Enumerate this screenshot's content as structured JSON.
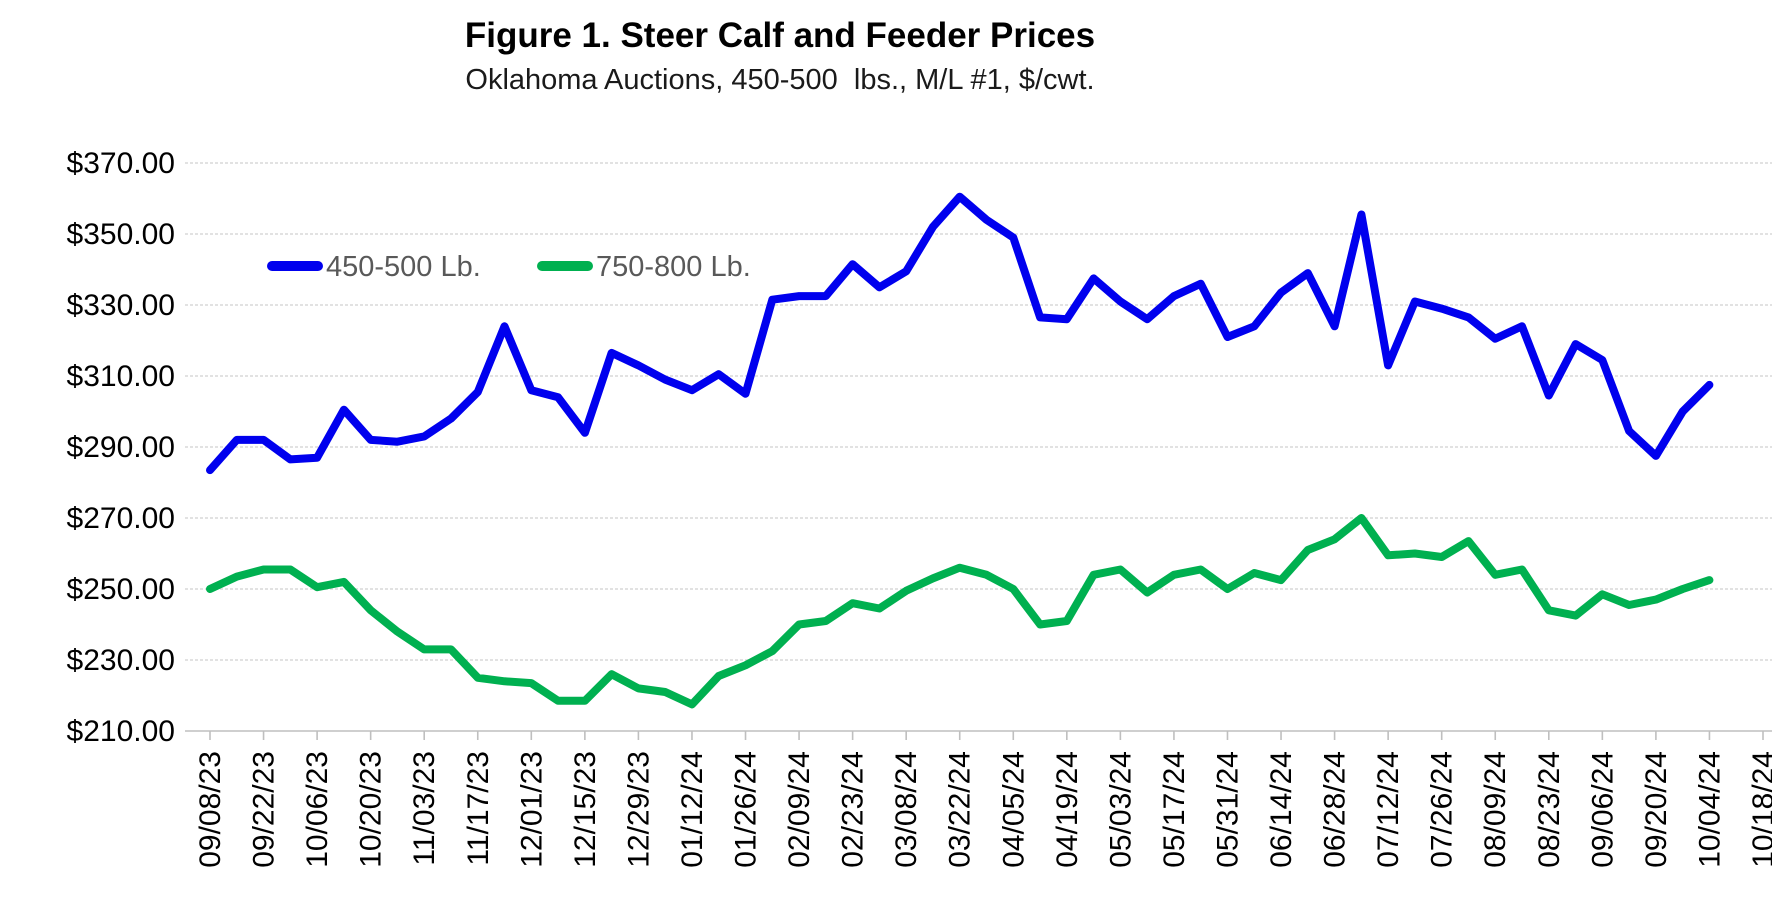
{
  "title": "Figure 1. Steer Calf and Feeder Prices",
  "subtitle": "Oklahoma Auctions, 450-500  lbs., M/L #1, $/cwt.",
  "colors": {
    "series_450_500": "#0000ee",
    "series_750_800": "#00b050",
    "legend_text": "#595959",
    "gridline": "#d9d9d9",
    "axis_line": "#bfbfbf",
    "tick_label": "#000000"
  },
  "legend": [
    {
      "label": "450-500 Lb.",
      "color": "#0000ee"
    },
    {
      "label": "750-800 Lb.",
      "color": "#00b050"
    }
  ],
  "y_axis": {
    "tick_labels": [
      "$370.00",
      "$350.00",
      "$330.00",
      "$310.00",
      "$290.00",
      "$270.00",
      "$250.00",
      "$230.00",
      "$210.00"
    ]
  },
  "x_axis": {
    "tick_labels": [
      "09/08/23",
      "09/22/23",
      "10/06/23",
      "10/20/23",
      "11/03/23",
      "11/17/23",
      "12/01/23",
      "12/15/23",
      "12/29/23",
      "01/12/24",
      "01/26/24",
      "02/09/24",
      "02/23/24",
      "03/08/24",
      "03/22/24",
      "04/05/24",
      "04/19/24",
      "05/03/24",
      "05/17/24",
      "05/31/24",
      "06/14/24",
      "06/28/24",
      "07/12/24",
      "07/26/24",
      "08/09/24",
      "08/23/24",
      "09/06/24",
      "09/20/24",
      "10/04/24",
      "10/18/24"
    ]
  },
  "chart_data": {
    "type": "line",
    "title": "Figure 1. Steer Calf and Feeder Prices",
    "subtitle": "Oklahoma Auctions, 450-500 lbs., M/L #1, $/cwt.",
    "ylabel": "$/cwt",
    "ylim": [
      210,
      370
    ],
    "y_tick_step": 20,
    "grid": "horizontal",
    "legend_position": "inside-top-left",
    "x_frequency": "weekly",
    "points_per_labeled_tick": 2,
    "x_first_point_label": "09/08/23",
    "x_last_point_label": "10/04/24",
    "x_axis_extends_to": "10/18/24",
    "categories": [
      "09/08/23",
      "09/22/23",
      "10/06/23",
      "10/20/23",
      "11/03/23",
      "11/17/23",
      "12/01/23",
      "12/15/23",
      "12/29/23",
      "01/12/24",
      "01/26/24",
      "02/09/24",
      "02/23/24",
      "03/08/24",
      "03/22/24",
      "04/05/24",
      "04/19/24",
      "05/03/24",
      "05/17/24",
      "05/31/24",
      "06/14/24",
      "06/28/24",
      "07/12/24",
      "07/26/24",
      "08/09/24",
      "08/23/24",
      "09/06/24",
      "09/20/24",
      "10/04/24",
      "10/18/24"
    ],
    "series": [
      {
        "name": "450-500 Lb.",
        "color": "#0000ee",
        "values": [
          283.5,
          292,
          292,
          286.5,
          287,
          300.5,
          292,
          291.5,
          293,
          298,
          305.5,
          324,
          306,
          304,
          294,
          316.5,
          313,
          309,
          306,
          310.5,
          305,
          331.5,
          332.5,
          332.5,
          341.5,
          335,
          339.5,
          352,
          360.5,
          354,
          349,
          326.5,
          326,
          337.5,
          331,
          326,
          332.5,
          336,
          321,
          324,
          333.5,
          339,
          324,
          355.5,
          313,
          331,
          329,
          326.5,
          320.5,
          324,
          304.5,
          319,
          314.5,
          294.5,
          287.5,
          300,
          307.5
        ]
      },
      {
        "name": "750-800 Lb.",
        "color": "#00b050",
        "values": [
          250,
          253.5,
          255.5,
          255.5,
          250.5,
          252,
          244,
          238,
          233,
          233,
          225,
          224,
          223.5,
          218.5,
          218.5,
          226,
          222,
          221,
          217.5,
          225.5,
          228.5,
          232.5,
          240,
          241,
          246,
          244.5,
          249.5,
          253,
          256,
          254,
          250,
          240,
          241,
          254,
          255.5,
          249,
          254,
          255.5,
          250,
          254.5,
          252.5,
          261,
          264,
          270,
          259.5,
          260,
          259,
          263.5,
          254,
          255.5,
          244,
          242.5,
          248.5,
          245.5,
          247,
          250,
          252.5
        ]
      }
    ]
  }
}
